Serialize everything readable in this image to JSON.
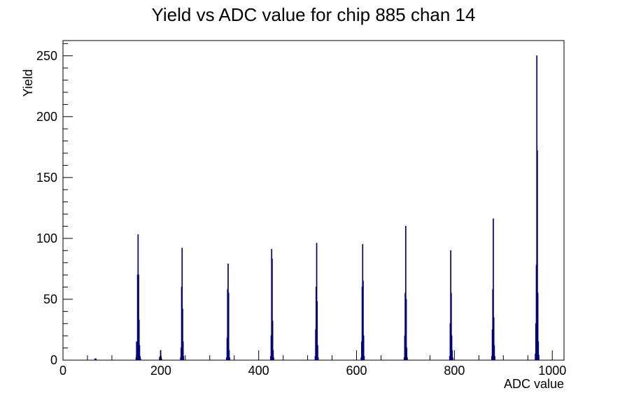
{
  "chart_data": {
    "type": "histogram",
    "title": "Yield vs ADC value for chip 885 chan 14",
    "xlabel": "ADC value",
    "ylabel": "Yield",
    "xlim": [
      0,
      1024
    ],
    "ylim": [
      0,
      262.5
    ],
    "bin_width": 1,
    "x_ticks": [
      0,
      200,
      400,
      600,
      800,
      1000
    ],
    "y_ticks": [
      0,
      50,
      100,
      150,
      200,
      250
    ],
    "grid": false,
    "legend": "none",
    "colors": {
      "line": "#000080",
      "axis": "#000000"
    },
    "bins": [
      {
        "x": 65,
        "y": 1
      },
      {
        "x": 66,
        "y": 1
      },
      {
        "x": 67,
        "y": 1
      },
      {
        "x": 149,
        "y": 2
      },
      {
        "x": 150,
        "y": 15
      },
      {
        "x": 151,
        "y": 14
      },
      {
        "x": 152,
        "y": 70
      },
      {
        "x": 153,
        "y": 103
      },
      {
        "x": 154,
        "y": 70
      },
      {
        "x": 155,
        "y": 33
      },
      {
        "x": 156,
        "y": 12
      },
      {
        "x": 157,
        "y": 3
      },
      {
        "x": 158,
        "y": 1
      },
      {
        "x": 197,
        "y": 2
      },
      {
        "x": 198,
        "y": 3
      },
      {
        "x": 199,
        "y": 8
      },
      {
        "x": 200,
        "y": 3
      },
      {
        "x": 201,
        "y": 1
      },
      {
        "x": 240,
        "y": 2
      },
      {
        "x": 241,
        "y": 10
      },
      {
        "x": 242,
        "y": 60
      },
      {
        "x": 243,
        "y": 92
      },
      {
        "x": 244,
        "y": 42
      },
      {
        "x": 245,
        "y": 15
      },
      {
        "x": 246,
        "y": 3
      },
      {
        "x": 334,
        "y": 2
      },
      {
        "x": 335,
        "y": 18
      },
      {
        "x": 336,
        "y": 58
      },
      {
        "x": 337,
        "y": 79
      },
      {
        "x": 338,
        "y": 55
      },
      {
        "x": 339,
        "y": 8
      },
      {
        "x": 340,
        "y": 2
      },
      {
        "x": 424,
        "y": 3
      },
      {
        "x": 425,
        "y": 20
      },
      {
        "x": 426,
        "y": 91
      },
      {
        "x": 427,
        "y": 83
      },
      {
        "x": 428,
        "y": 32
      },
      {
        "x": 429,
        "y": 8
      },
      {
        "x": 430,
        "y": 2
      },
      {
        "x": 515,
        "y": 3
      },
      {
        "x": 516,
        "y": 25
      },
      {
        "x": 517,
        "y": 60
      },
      {
        "x": 518,
        "y": 96
      },
      {
        "x": 519,
        "y": 48
      },
      {
        "x": 520,
        "y": 12
      },
      {
        "x": 521,
        "y": 2
      },
      {
        "x": 609,
        "y": 2
      },
      {
        "x": 610,
        "y": 15
      },
      {
        "x": 611,
        "y": 60
      },
      {
        "x": 612,
        "y": 95
      },
      {
        "x": 613,
        "y": 65
      },
      {
        "x": 614,
        "y": 20
      },
      {
        "x": 615,
        "y": 3
      },
      {
        "x": 697,
        "y": 2
      },
      {
        "x": 698,
        "y": 20
      },
      {
        "x": 699,
        "y": 55
      },
      {
        "x": 700,
        "y": 110
      },
      {
        "x": 701,
        "y": 50
      },
      {
        "x": 702,
        "y": 10
      },
      {
        "x": 703,
        "y": 2
      },
      {
        "x": 790,
        "y": 3
      },
      {
        "x": 791,
        "y": 30
      },
      {
        "x": 792,
        "y": 90
      },
      {
        "x": 793,
        "y": 55
      },
      {
        "x": 794,
        "y": 20
      },
      {
        "x": 795,
        "y": 8
      },
      {
        "x": 796,
        "y": 2
      },
      {
        "x": 876,
        "y": 3
      },
      {
        "x": 877,
        "y": 25
      },
      {
        "x": 878,
        "y": 58
      },
      {
        "x": 879,
        "y": 116
      },
      {
        "x": 880,
        "y": 35
      },
      {
        "x": 881,
        "y": 12
      },
      {
        "x": 882,
        "y": 3
      },
      {
        "x": 965,
        "y": 5
      },
      {
        "x": 966,
        "y": 30
      },
      {
        "x": 967,
        "y": 78
      },
      {
        "x": 968,
        "y": 250
      },
      {
        "x": 969,
        "y": 172
      },
      {
        "x": 970,
        "y": 55
      },
      {
        "x": 971,
        "y": 15
      },
      {
        "x": 972,
        "y": 4
      }
    ]
  }
}
